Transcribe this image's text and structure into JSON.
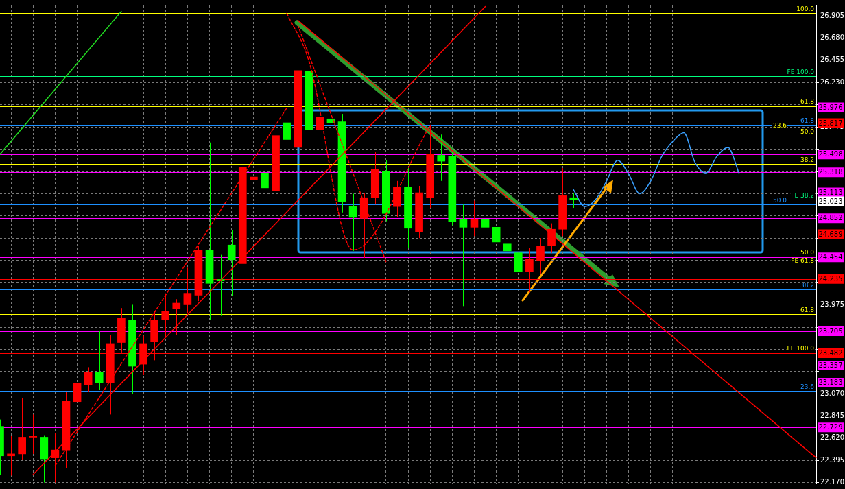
{
  "chart_data": {
    "type": "candlestick",
    "categories": [
      null,
      null,
      null,
      null,
      null,
      null,
      null,
      null,
      null,
      null,
      null,
      null,
      null,
      null,
      null,
      null,
      null,
      null,
      null,
      null,
      null,
      null,
      null,
      null,
      null,
      null,
      null,
      null,
      null,
      null,
      null,
      null,
      null,
      null,
      null,
      null,
      null,
      null,
      null,
      null,
      null,
      null,
      null,
      null,
      null,
      null,
      null,
      null,
      null,
      null,
      null,
      null,
      null,
      null,
      null,
      null,
      null,
      null,
      null,
      null,
      null,
      null,
      null,
      null,
      null,
      null,
      null,
      null,
      null,
      null,
      null,
      null,
      null,
      null,
      null
    ],
    "ohlc": [
      [
        22.74,
        22.81,
        22.25,
        22.44
      ],
      [
        22.44,
        22.64,
        22.24,
        22.46
      ],
      [
        22.46,
        23.03,
        22.4,
        22.63
      ],
      [
        22.63,
        22.86,
        22.46,
        22.64
      ],
      [
        22.63,
        22.65,
        22.17,
        22.41
      ],
      [
        22.42,
        22.67,
        22.17,
        22.5
      ],
      [
        22.5,
        23.09,
        22.32,
        23.0
      ],
      [
        22.99,
        23.26,
        22.75,
        23.18
      ],
      [
        23.16,
        23.34,
        23.09,
        23.29
      ],
      [
        23.29,
        23.71,
        23.11,
        23.18
      ],
      [
        23.18,
        23.67,
        22.86,
        23.58
      ],
      [
        23.59,
        23.94,
        23.49,
        23.84
      ],
      [
        23.82,
        23.98,
        23.07,
        23.35
      ],
      [
        23.37,
        23.66,
        23.26,
        23.58
      ],
      [
        23.6,
        23.91,
        23.41,
        23.82
      ],
      [
        23.82,
        24.09,
        23.65,
        23.91
      ],
      [
        23.93,
        24.03,
        23.67,
        23.99
      ],
      [
        23.98,
        24.35,
        23.89,
        24.09
      ],
      [
        24.07,
        24.57,
        24.01,
        24.53
      ],
      [
        24.53,
        25.62,
        23.82,
        24.19
      ],
      [
        24.23,
        24.48,
        23.86,
        24.22
      ],
      [
        24.58,
        24.73,
        24.06,
        24.43
      ],
      [
        24.39,
        25.52,
        24.27,
        25.37
      ],
      [
        25.24,
        25.4,
        24.85,
        25.27
      ],
      [
        25.31,
        25.46,
        24.95,
        25.16
      ],
      [
        25.13,
        25.72,
        25.03,
        25.69
      ],
      [
        25.82,
        26.12,
        25.27,
        25.65
      ],
      [
        25.57,
        26.92,
        25.33,
        26.35
      ],
      [
        26.34,
        26.62,
        25.38,
        25.75
      ],
      [
        25.75,
        26.12,
        25.29,
        25.88
      ],
      [
        25.86,
        25.97,
        25.39,
        25.82
      ],
      [
        25.83,
        25.91,
        24.91,
        25.02
      ],
      [
        24.97,
        25.1,
        24.52,
        24.86
      ],
      [
        24.85,
        25.11,
        24.45,
        25.06
      ],
      [
        25.06,
        25.52,
        24.99,
        25.35
      ],
      [
        25.33,
        25.44,
        24.82,
        24.9
      ],
      [
        24.97,
        25.23,
        24.86,
        25.17
      ],
      [
        25.17,
        25.37,
        24.55,
        24.75
      ],
      [
        24.71,
        25.18,
        24.65,
        25.11
      ],
      [
        25.06,
        25.8,
        24.95,
        25.5
      ],
      [
        25.49,
        25.7,
        25.23,
        25.43
      ],
      [
        25.48,
        25.52,
        24.78,
        24.82
      ],
      [
        24.84,
        24.99,
        23.96,
        24.76
      ],
      [
        24.76,
        25.03,
        24.67,
        24.84
      ],
      [
        24.84,
        25.07,
        24.55,
        24.76
      ],
      [
        24.76,
        24.84,
        24.41,
        24.61
      ],
      [
        24.59,
        24.83,
        24.27,
        24.52
      ],
      [
        24.5,
        24.93,
        24.21,
        24.31
      ],
      [
        24.31,
        24.55,
        24.1,
        24.44
      ],
      [
        24.42,
        24.65,
        24.29,
        24.57
      ],
      [
        24.57,
        24.8,
        24.5,
        24.74
      ],
      [
        24.74,
        25.36,
        24.67,
        25.08
      ],
      [
        25.06,
        25.11,
        24.95,
        25.04
      ],
      null,
      null,
      null,
      null,
      null,
      null,
      null,
      null,
      null,
      null,
      null,
      null,
      null,
      null,
      null,
      null,
      null,
      null,
      null,
      null,
      null,
      null
    ],
    "colors": [
      "#00ff00",
      "#ff0000",
      "#ff0000",
      "#ff0000",
      "#00ff00",
      "#ff0000",
      "#ff0000",
      "#ff0000",
      "#ff0000",
      "#00ff00",
      "#ff0000",
      "#ff0000",
      "#00ff00",
      "#ff0000",
      "#ff0000",
      "#ff0000",
      "#ff0000",
      "#ff0000",
      "#ff0000",
      "#00ff00",
      "#00ff00",
      "#00ff00",
      "#ff0000",
      "#ff0000",
      "#00ff00",
      "#ff0000",
      "#00ff00",
      "#ff0000",
      "#00ff00",
      "#ff0000",
      "#00ff00",
      "#00ff00",
      "#00ff00",
      "#ff0000",
      "#ff0000",
      "#00ff00",
      "#ff0000",
      "#00ff00",
      "#ff0000",
      "#ff0000",
      "#00ff00",
      "#00ff00",
      "#00ff00",
      "#ff0000",
      "#00ff00",
      "#00ff00",
      "#00ff00",
      "#00ff00",
      "#ff0000",
      "#ff0000",
      "#ff0000",
      "#ff0000",
      "#00ff00",
      null,
      null,
      null,
      null,
      null,
      null,
      null,
      null,
      null,
      null,
      null,
      null,
      null,
      null,
      null,
      null,
      null,
      null,
      null,
      null,
      null,
      null
    ],
    "series": [
      {
        "type": "line",
        "color": "#22dd22",
        "values": [
          25.5,
          null,
          null,
          null,
          null,
          null,
          null,
          null,
          null,
          null,
          null,
          26.95,
          null,
          null,
          null,
          null,
          null,
          null,
          null,
          null,
          null,
          null,
          null,
          null,
          null,
          null,
          null,
          null,
          null,
          null,
          null,
          null,
          null,
          null,
          null,
          null,
          null,
          null,
          null,
          null,
          null,
          null,
          null,
          null,
          null,
          null,
          null,
          null,
          null,
          null,
          null,
          null,
          null,
          null,
          null,
          null,
          null,
          null,
          null,
          null,
          null,
          null,
          null,
          null,
          null,
          null,
          null,
          null,
          null,
          null,
          null,
          null,
          null,
          null,
          null
        ]
      },
      {
        "type": "line",
        "color": "#ff0000",
        "values": [
          null,
          null,
          null,
          22.25,
          null,
          null,
          null,
          null,
          null,
          null,
          null,
          null,
          null,
          null,
          null,
          null,
          null,
          null,
          null,
          null,
          null,
          null,
          null,
          null,
          null,
          null,
          null,
          null,
          null,
          null,
          null,
          null,
          null,
          null,
          null,
          null,
          null,
          null,
          null,
          null,
          null,
          null,
          null,
          null,
          27.0,
          null,
          null,
          null,
          null,
          null,
          null,
          null,
          null,
          null,
          null,
          null,
          null,
          null,
          null,
          null,
          null,
          null,
          null,
          null,
          null,
          null,
          null,
          null,
          null,
          null,
          null,
          null,
          null,
          null,
          null
        ]
      },
      {
        "type": "line",
        "color": "#ff0000",
        "values": [
          null,
          null,
          null,
          null,
          null,
          null,
          null,
          null,
          null,
          null,
          null,
          null,
          null,
          null,
          null,
          null,
          null,
          null,
          null,
          null,
          null,
          null,
          null,
          null,
          null,
          null,
          null,
          26.86,
          null,
          null,
          null,
          null,
          null,
          null,
          null,
          null,
          null,
          null,
          null,
          null,
          null,
          null,
          null,
          null,
          null,
          null,
          null,
          null,
          null,
          null,
          null,
          null,
          null,
          null,
          null,
          null,
          null,
          null,
          null,
          null,
          null,
          null,
          null,
          null,
          null,
          null,
          null,
          null,
          null,
          null,
          null,
          null,
          null,
          null,
          22.42
        ]
      },
      {
        "type": "line",
        "color": "#ff0000",
        "line_style": "dashed",
        "values": [
          null,
          null,
          null,
          null,
          null,
          22.34,
          null,
          null,
          null,
          null,
          null,
          null,
          null,
          null,
          null,
          null,
          null,
          null,
          null,
          null,
          null,
          null,
          null,
          null,
          null,
          null,
          25.97,
          null,
          null,
          null,
          null,
          null,
          null,
          null,
          null,
          null,
          null,
          null,
          null,
          null,
          null,
          null,
          null,
          null,
          null,
          null,
          null,
          null,
          null,
          null,
          null,
          null,
          null,
          null,
          null,
          null,
          null,
          null,
          null,
          null,
          null,
          null,
          null,
          null,
          null,
          null,
          null,
          null,
          null,
          null,
          null,
          null,
          null,
          null,
          null
        ]
      },
      {
        "type": "line",
        "color": "#ff0000",
        "line_style": "dashed",
        "values": [
          null,
          null,
          null,
          null,
          null,
          null,
          null,
          null,
          null,
          null,
          null,
          null,
          null,
          null,
          null,
          null,
          null,
          null,
          null,
          null,
          null,
          null,
          null,
          null,
          null,
          null,
          26.93,
          null,
          26.45,
          null,
          null,
          null,
          24.53,
          null,
          null,
          null,
          null,
          null,
          null,
          25.79,
          null,
          null,
          null,
          null,
          null,
          null,
          null,
          null,
          null,
          null,
          null,
          null,
          null,
          null,
          null,
          null,
          null,
          null,
          null,
          null,
          null,
          null,
          null,
          null,
          null,
          null,
          null,
          null,
          null,
          null,
          null,
          null,
          null,
          null,
          null
        ]
      },
      {
        "type": "line",
        "color": "#ff0000",
        "line_style": "dashed",
        "values": [
          null,
          null,
          null,
          null,
          null,
          null,
          null,
          null,
          null,
          null,
          null,
          null,
          null,
          null,
          null,
          null,
          null,
          null,
          null,
          null,
          null,
          null,
          null,
          null,
          null,
          null,
          null,
          26.81,
          null,
          null,
          null,
          null,
          null,
          null,
          null,
          24.41,
          null,
          null,
          null,
          null,
          null,
          null,
          null,
          null,
          null,
          null,
          null,
          null,
          null,
          null,
          null,
          null,
          null,
          null,
          null,
          null,
          null,
          null,
          null,
          null,
          null,
          null,
          null,
          null,
          null,
          null,
          null,
          null,
          null,
          null,
          null,
          null,
          null,
          null,
          null
        ]
      },
      {
        "type": "line",
        "color": "#3aa0ff",
        "values": [
          null,
          null,
          null,
          null,
          null,
          null,
          null,
          null,
          null,
          null,
          null,
          null,
          null,
          null,
          null,
          null,
          null,
          null,
          null,
          null,
          null,
          null,
          null,
          null,
          null,
          null,
          null,
          null,
          null,
          null,
          null,
          null,
          null,
          null,
          null,
          null,
          null,
          null,
          null,
          null,
          null,
          null,
          null,
          null,
          null,
          null,
          null,
          null,
          null,
          null,
          null,
          null,
          25.14,
          24.97,
          25.04,
          25.23,
          25.44,
          25.3,
          25.1,
          25.23,
          25.48,
          25.63,
          25.72,
          25.42,
          25.31,
          25.48,
          25.57,
          25.31,
          null,
          null,
          null,
          null,
          null,
          null,
          null
        ]
      }
    ],
    "ylim": [
      22.16,
      27.01
    ],
    "yticks": [
      26.905,
      {
        "value": 26.68,
        "label": "26.680"
      },
      26.455,
      {
        "value": 26.23,
        "label": "26.230"
      },
      {
        "value": 26.005,
        "label": null
      },
      25.775,
      {
        "value": 25.55,
        "label": null
      },
      {
        "value": 25.325,
        "label": null
      },
      {
        "value": 25.1,
        "label": null
      },
      {
        "value": 24.875,
        "label": null
      },
      {
        "value": 24.65,
        "label": null
      },
      {
        "value": 24.425,
        "label": null
      },
      {
        "value": 24.2,
        "label": null
      },
      23.975,
      {
        "value": 23.745,
        "label": null
      },
      {
        "value": 23.52,
        "label": null
      },
      {
        "value": 23.295,
        "label": null
      },
      {
        "value": 23.07,
        "label": "23.070"
      },
      22.845,
      {
        "value": 22.62,
        "label": "22.620"
      },
      22.395,
      {
        "value": 22.17,
        "label": "22.170"
      }
    ],
    "ref_lines": [
      {
        "axis": "y",
        "value": 26.93,
        "color": "#ffff00"
      },
      {
        "axis": "y",
        "value": 26.29,
        "color": "#00ff7f"
      },
      {
        "axis": "y",
        "value": 25.99,
        "color": "#ffff00"
      },
      {
        "axis": "y",
        "value": 25.976,
        "label": "25.976",
        "color": "#ff00ff"
      },
      {
        "axis": "y",
        "value": 25.817,
        "label": "25.817",
        "color": "#ff0000"
      },
      {
        "axis": "y",
        "value": 25.8,
        "color": "#1e90ff"
      },
      {
        "axis": "y",
        "value": 25.75,
        "color": "#ffff00"
      },
      {
        "axis": "y",
        "value": 25.69,
        "color": "#ffff00"
      },
      {
        "axis": "y",
        "value": 25.498,
        "label": "25.498",
        "color": "#ff00ff"
      },
      {
        "axis": "y",
        "value": 25.4,
        "color": "#ffff00"
      },
      {
        "axis": "y",
        "value": 25.318,
        "label": "25.318",
        "color": "#ff00ff"
      },
      {
        "axis": "y",
        "value": 25.113,
        "label": "25.113",
        "color": "#ff00ff"
      },
      {
        "axis": "y",
        "value": 25.04,
        "color": "#00ff7f"
      },
      {
        "axis": "y",
        "value": 25.023,
        "label": "25.023",
        "color": "#ffffff"
      },
      {
        "axis": "y",
        "value": 24.99,
        "color": "#1e90ff"
      },
      {
        "axis": "y",
        "value": 24.852,
        "label": "24.852",
        "color": "#ff00ff"
      },
      {
        "axis": "y",
        "value": 24.689,
        "label": "24.689",
        "color": "#ff0000"
      },
      {
        "axis": "y",
        "value": 24.46,
        "color": "#ffff00"
      },
      {
        "axis": "y",
        "value": 24.454,
        "label": "24.454",
        "color": "#ff00ff"
      },
      {
        "axis": "y",
        "value": 24.38,
        "color": "#ffff00"
      },
      {
        "axis": "y",
        "value": 24.235,
        "label": "24.235",
        "color": "#ff0000"
      },
      {
        "axis": "y",
        "value": 24.13,
        "color": "#1e90ff"
      },
      {
        "axis": "y",
        "value": 23.88,
        "color": "#ffff00"
      },
      {
        "axis": "y",
        "value": 23.705,
        "label": "23.705",
        "color": "#ff00ff"
      },
      {
        "axis": "y",
        "value": 23.49,
        "color": "#ffff00"
      },
      {
        "axis": "y",
        "value": 23.482,
        "label": "23.482",
        "color": "#ff0000"
      },
      {
        "axis": "y",
        "value": 23.357,
        "label": "23.357",
        "color": "#ff00ff"
      },
      {
        "axis": "y",
        "value": 23.183,
        "label": "23.183",
        "color": "#ff00ff"
      },
      {
        "axis": "y",
        "value": 23.1,
        "color": "#1e90ff"
      },
      {
        "axis": "y",
        "value": 22.729,
        "label": "22.729",
        "color": "#ff00ff"
      }
    ],
    "annotations": [
      {
        "text": "100.0",
        "y": 26.93
      },
      {
        "text": "FE 100.0",
        "y": 26.29
      },
      {
        "text": "61.8",
        "y": 25.99
      },
      {
        "text": "61.8",
        "y": 25.8
      },
      {
        "text": "23.6",
        "y": 25.75
      },
      {
        "text": "50.0",
        "y": 25.69
      },
      {
        "text": "38.2",
        "y": 25.4
      },
      {
        "text": "FE 38.2",
        "y": 25.04
      },
      {
        "text": "50.0",
        "y": 24.99
      },
      {
        "text": "50.0",
        "y": 24.46
      },
      {
        "text": "FE 61.8",
        "y": 24.38
      },
      {
        "text": "38.2",
        "y": 24.13
      },
      {
        "text": "61.8",
        "y": 23.88
      },
      {
        "text": "FE 100.0",
        "y": 23.49
      },
      {
        "text": "23.6",
        "y": 23.1
      }
    ],
    "grid": true,
    "legend": false,
    "tick_labels": "y",
    "marker": "none"
  }
}
